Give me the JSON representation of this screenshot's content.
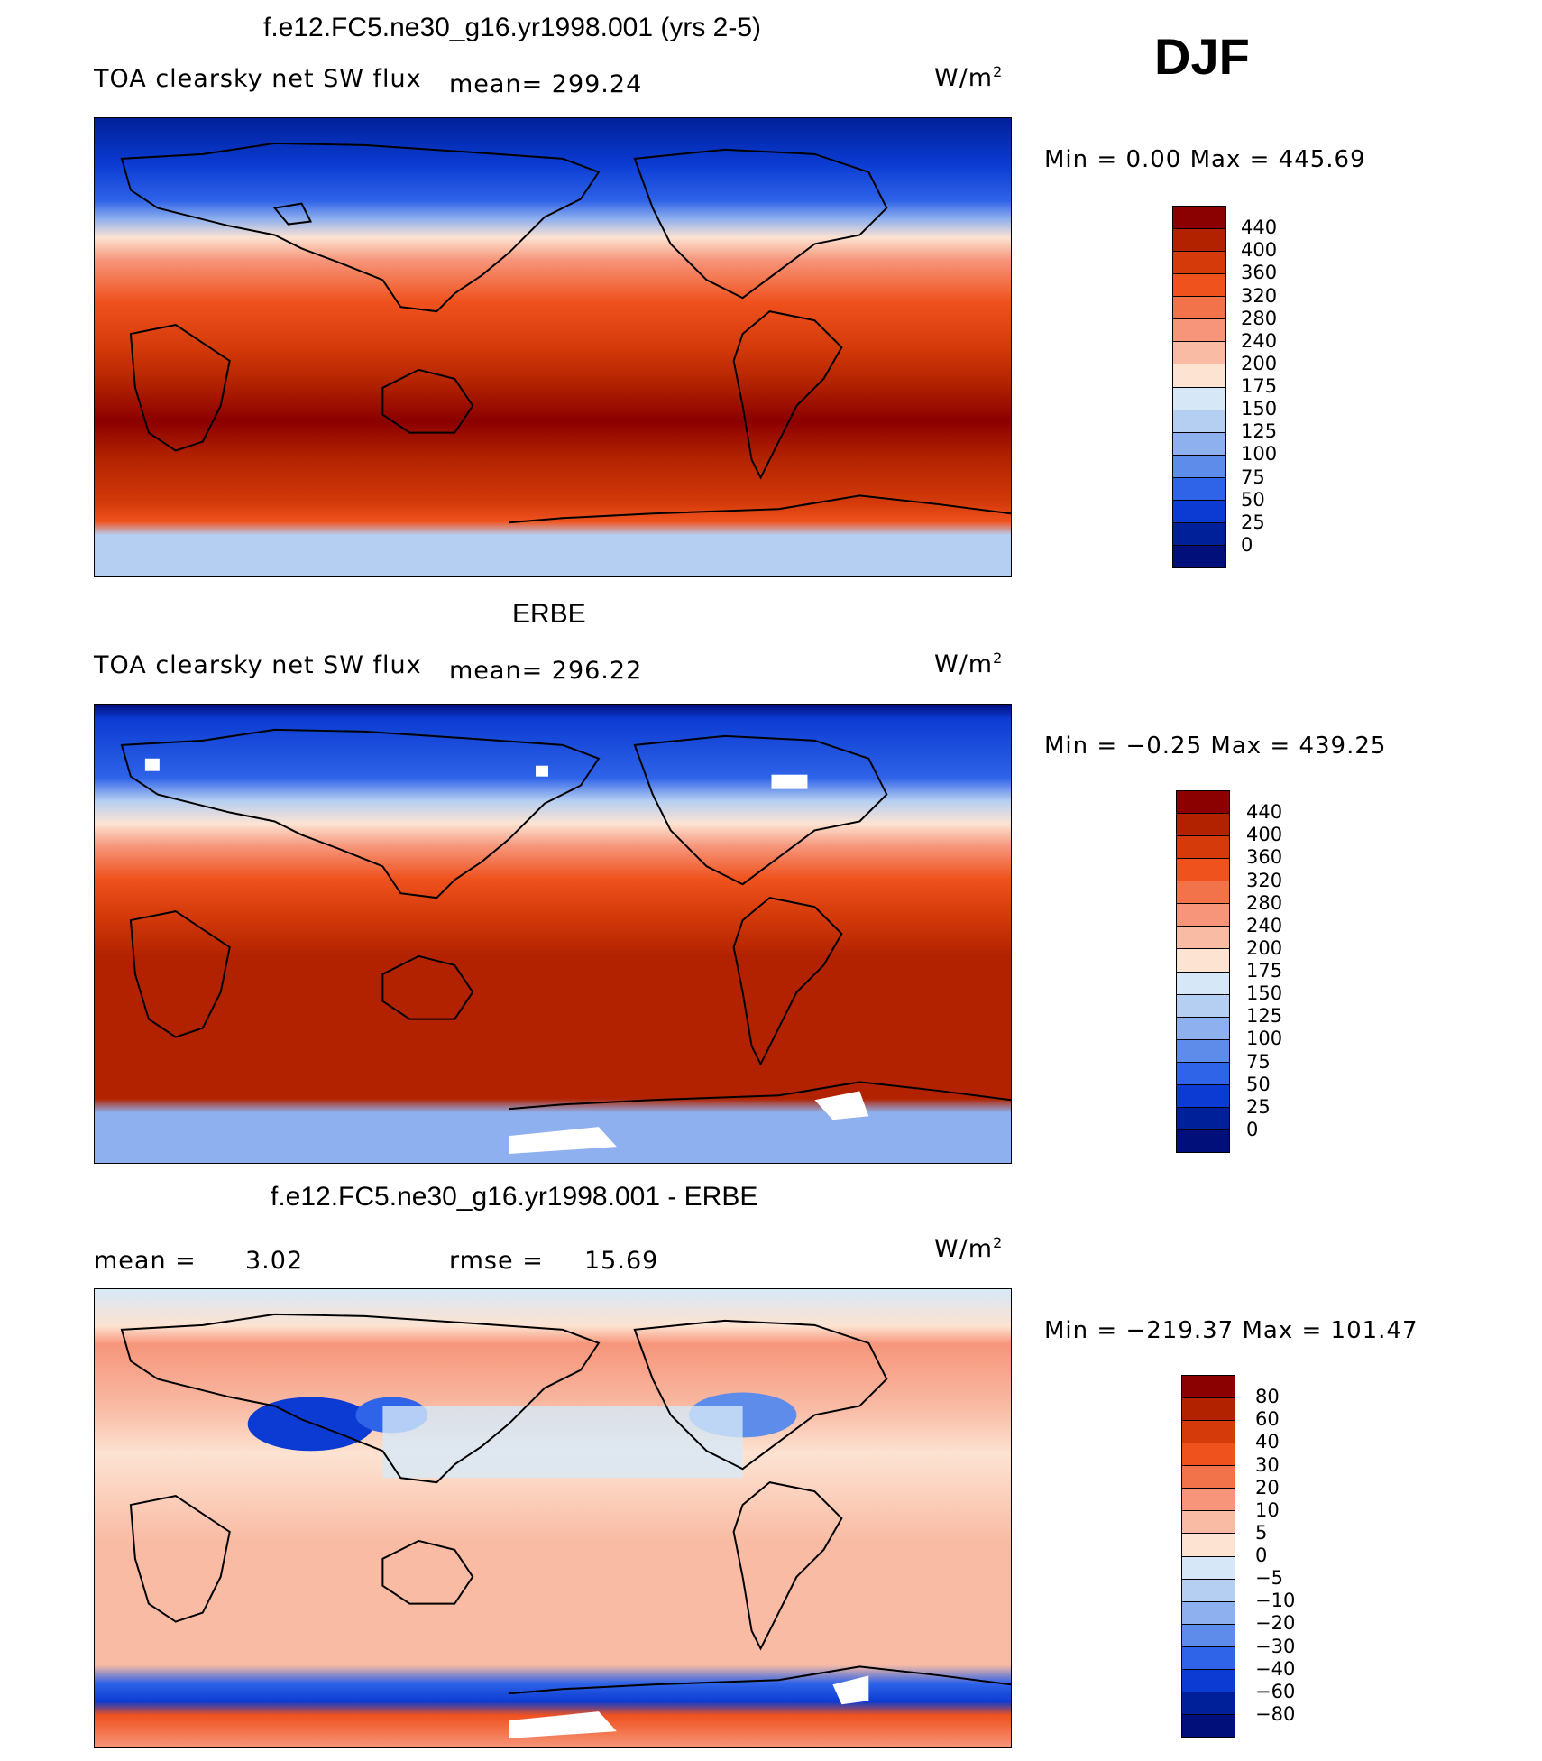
{
  "season": "DJF",
  "panels": [
    {
      "id": "model",
      "title": "f.e12.FC5.ne30_g16.yr1998.001 (yrs 2-5)",
      "left_label": "TOA clearsky net SW flux",
      "mean_label": "mean= 299.24",
      "units": "W/m",
      "units_sup": "2",
      "minmax": "Min =    0.00 Max = 445.69",
      "colorbar": {
        "labels": [
          "440",
          "400",
          "360",
          "320",
          "280",
          "240",
          "200",
          "175",
          "150",
          "125",
          "100",
          "75",
          "50",
          "25",
          "0"
        ],
        "colors": [
          "#8b0000",
          "#b22200",
          "#d43a0a",
          "#f0521e",
          "#f2724a",
          "#f6957a",
          "#f9bba4",
          "#fde3d2",
          "#d6e8f7",
          "#b5cff2",
          "#8fb0ee",
          "#5e8cea",
          "#2f63e8",
          "#0b3bd2",
          "#002099",
          "#000f7a"
        ]
      }
    },
    {
      "id": "obs",
      "title": "ERBE",
      "left_label": "TOA clearsky net SW flux",
      "mean_label": "mean= 296.22",
      "units": "W/m",
      "units_sup": "2",
      "minmax": "Min =  −0.25 Max = 439.25",
      "colorbar": {
        "labels": [
          "440",
          "400",
          "360",
          "320",
          "280",
          "240",
          "200",
          "175",
          "150",
          "125",
          "100",
          "75",
          "50",
          "25",
          "0"
        ],
        "colors": [
          "#8b0000",
          "#b22200",
          "#d43a0a",
          "#f0521e",
          "#f2724a",
          "#f6957a",
          "#f9bba4",
          "#fde3d2",
          "#d6e8f7",
          "#b5cff2",
          "#8fb0ee",
          "#5e8cea",
          "#2f63e8",
          "#0b3bd2",
          "#002099",
          "#000f7a"
        ]
      }
    },
    {
      "id": "diff",
      "title": "f.e12.FC5.ne30_g16.yr1998.001 - ERBE",
      "mean_name": "mean =",
      "mean_value": "3.02",
      "rmse_name": "rmse =",
      "rmse_value": "15.69",
      "units": "W/m",
      "units_sup": "2",
      "minmax": "Min = −219.37 Max = 101.47",
      "colorbar": {
        "labels": [
          "80",
          "60",
          "40",
          "30",
          "20",
          "10",
          "5",
          "0",
          "−5",
          "−10",
          "−20",
          "−30",
          "−40",
          "−60",
          "−80"
        ],
        "colors": [
          "#8b0000",
          "#b22200",
          "#d43a0a",
          "#f0521e",
          "#f2724a",
          "#f6957a",
          "#f9bba4",
          "#fde3d2",
          "#d6e8f7",
          "#b5cff2",
          "#8fb0ee",
          "#5e8cea",
          "#2f63e8",
          "#0b3bd2",
          "#002099",
          "#000f7a"
        ]
      }
    }
  ]
}
